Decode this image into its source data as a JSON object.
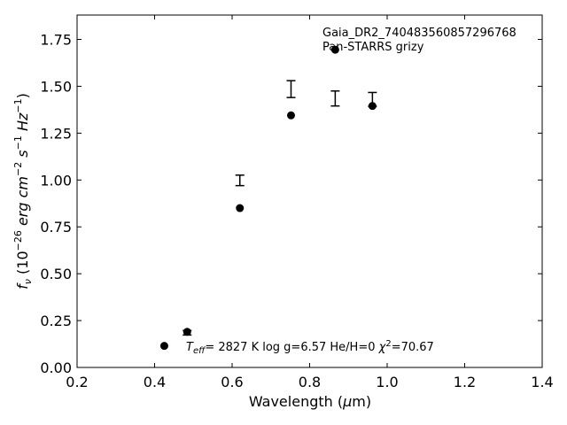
{
  "chart_data": {
    "type": "scatter",
    "xlabel_main": "Wavelength (",
    "xlabel_unit_mu": "μ",
    "xlabel_unit_rest": "m)",
    "ylabel": {
      "f": "f",
      "nu": "ν",
      "open": " (10",
      "exp1": "−26",
      "erg": " erg cm",
      "exp2": "−2",
      "s": " s",
      "exp3": "−1",
      "hz": " Hz",
      "exp4": "−1",
      "close": ")"
    },
    "xlim": [
      0.2,
      1.4
    ],
    "ylim": [
      0.0,
      1.88
    ],
    "xticks": [
      "0.2",
      "0.4",
      "0.6",
      "0.8",
      "1.0",
      "1.2",
      "1.4"
    ],
    "xtick_values": [
      0.2,
      0.4,
      0.6,
      0.8,
      1.0,
      1.2,
      1.4
    ],
    "yticks": [
      "0.00",
      "0.25",
      "0.50",
      "0.75",
      "1.00",
      "1.25",
      "1.50",
      "1.75"
    ],
    "ytick_values": [
      0.0,
      0.25,
      0.5,
      0.75,
      1.0,
      1.25,
      1.5,
      1.75
    ],
    "model_points": {
      "x": [
        0.425,
        0.484,
        0.62,
        0.752,
        0.866,
        0.962
      ],
      "y": [
        0.115,
        0.19,
        0.85,
        1.345,
        1.695,
        1.395
      ]
    },
    "observed": {
      "x": [
        0.484,
        0.62,
        0.752,
        0.866,
        0.962
      ],
      "y": [
        0.185,
        0.998,
        1.485,
        1.435,
        1.43
      ],
      "err": [
        0.012,
        0.028,
        0.045,
        0.04,
        0.037
      ]
    },
    "annotation_object": "Gaia_DR2_740483560857296768",
    "annotation_survey": "Pan-STARRS grizy",
    "params": {
      "t_label": "T",
      "t_sub": "eff",
      "t_value": "=  2827 K  log g=6.57  He/H=0  ",
      "chi": "χ",
      "chi_exp": "2",
      "chi_value": "=70.67"
    }
  }
}
